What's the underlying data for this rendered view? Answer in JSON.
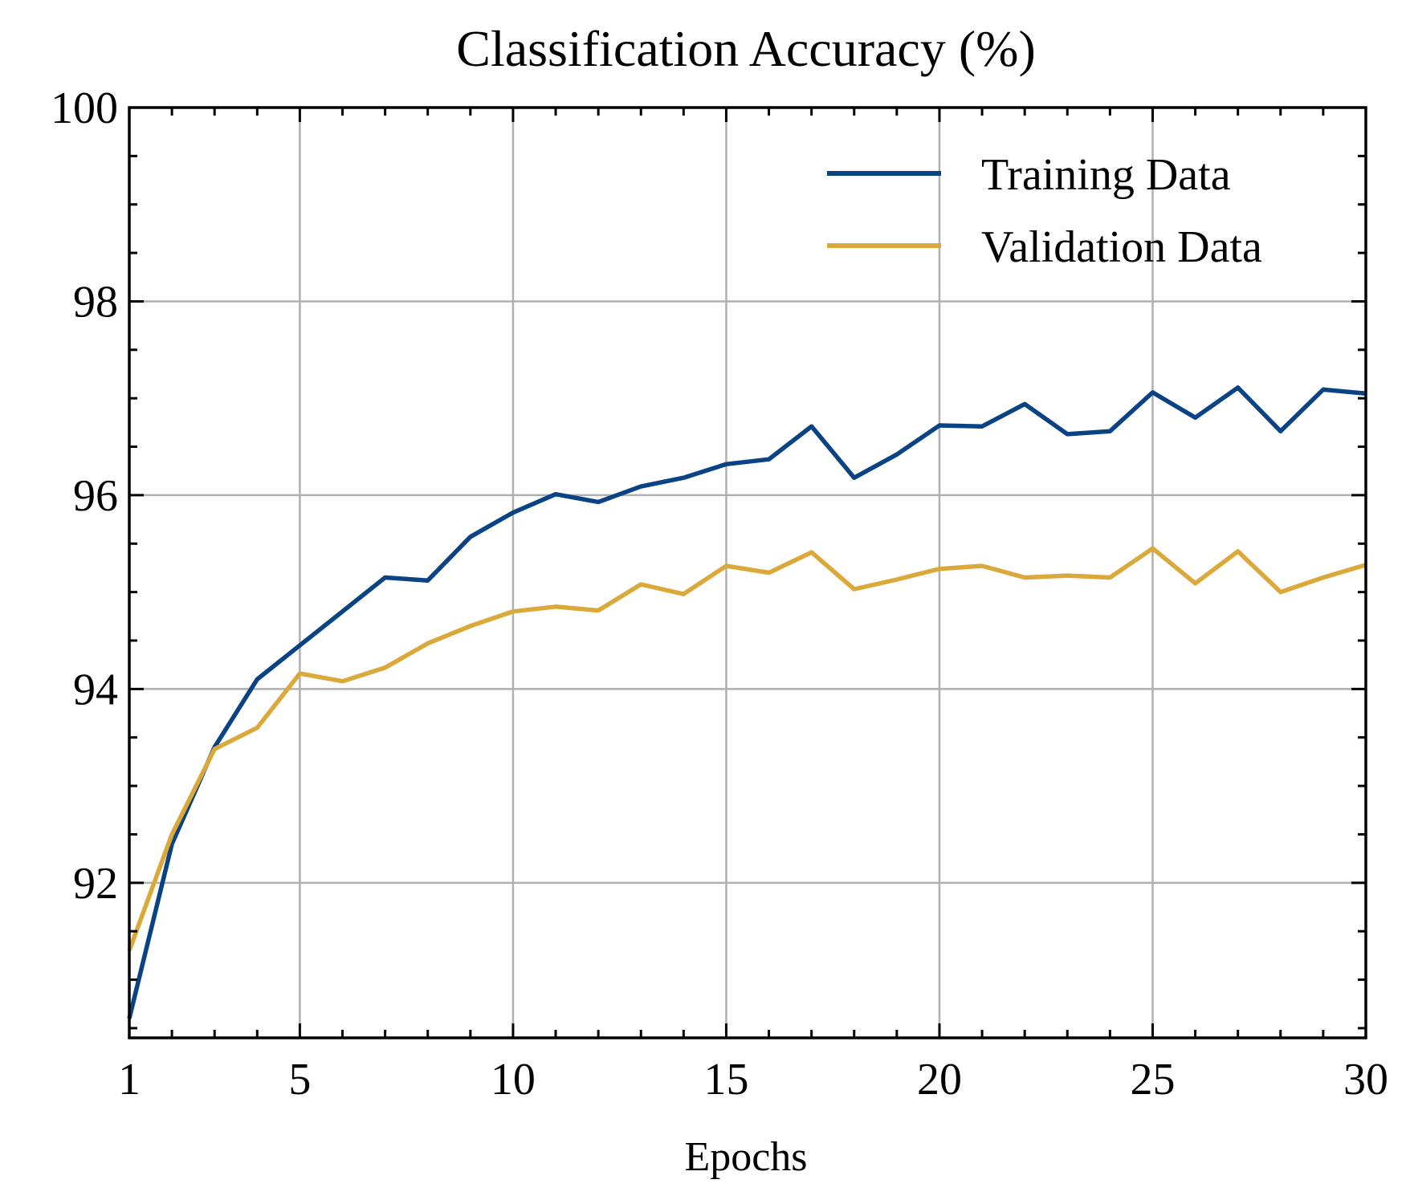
{
  "chart_data": {
    "type": "line",
    "title": "Classification Accuracy (%)",
    "xlabel": "Epochs",
    "ylabel": "",
    "xlim": [
      1,
      30
    ],
    "ylim": [
      90.4,
      100
    ],
    "x_ticks": [
      1,
      5,
      10,
      15,
      20,
      25,
      30
    ],
    "y_ticks": [
      92,
      94,
      96,
      98,
      100
    ],
    "grid": true,
    "legend_position": "top-right",
    "x": [
      1,
      2,
      3,
      4,
      5,
      6,
      7,
      8,
      9,
      10,
      11,
      12,
      13,
      14,
      15,
      16,
      17,
      18,
      19,
      20,
      21,
      22,
      23,
      24,
      25,
      26,
      27,
      28,
      29,
      30
    ],
    "series": [
      {
        "name": "Training Data",
        "color": "#0a4384",
        "values": [
          90.6,
          92.4,
          93.4,
          94.1,
          94.45,
          94.8,
          95.15,
          95.12,
          95.57,
          95.82,
          96.01,
          95.93,
          96.09,
          96.18,
          96.32,
          96.37,
          96.71,
          96.18,
          96.42,
          96.72,
          96.71,
          96.94,
          96.63,
          96.66,
          97.06,
          96.8,
          97.11,
          96.66,
          97.09,
          97.05
        ]
      },
      {
        "name": "Validation Data",
        "color": "#dba83a",
        "values": [
          91.3,
          92.5,
          93.38,
          93.6,
          94.16,
          94.08,
          94.22,
          94.47,
          94.65,
          94.8,
          94.85,
          94.81,
          95.08,
          94.98,
          95.27,
          95.2,
          95.41,
          95.03,
          95.13,
          95.24,
          95.27,
          95.15,
          95.17,
          95.15,
          95.45,
          95.09,
          95.42,
          95.0,
          95.15,
          95.28
        ]
      }
    ]
  }
}
